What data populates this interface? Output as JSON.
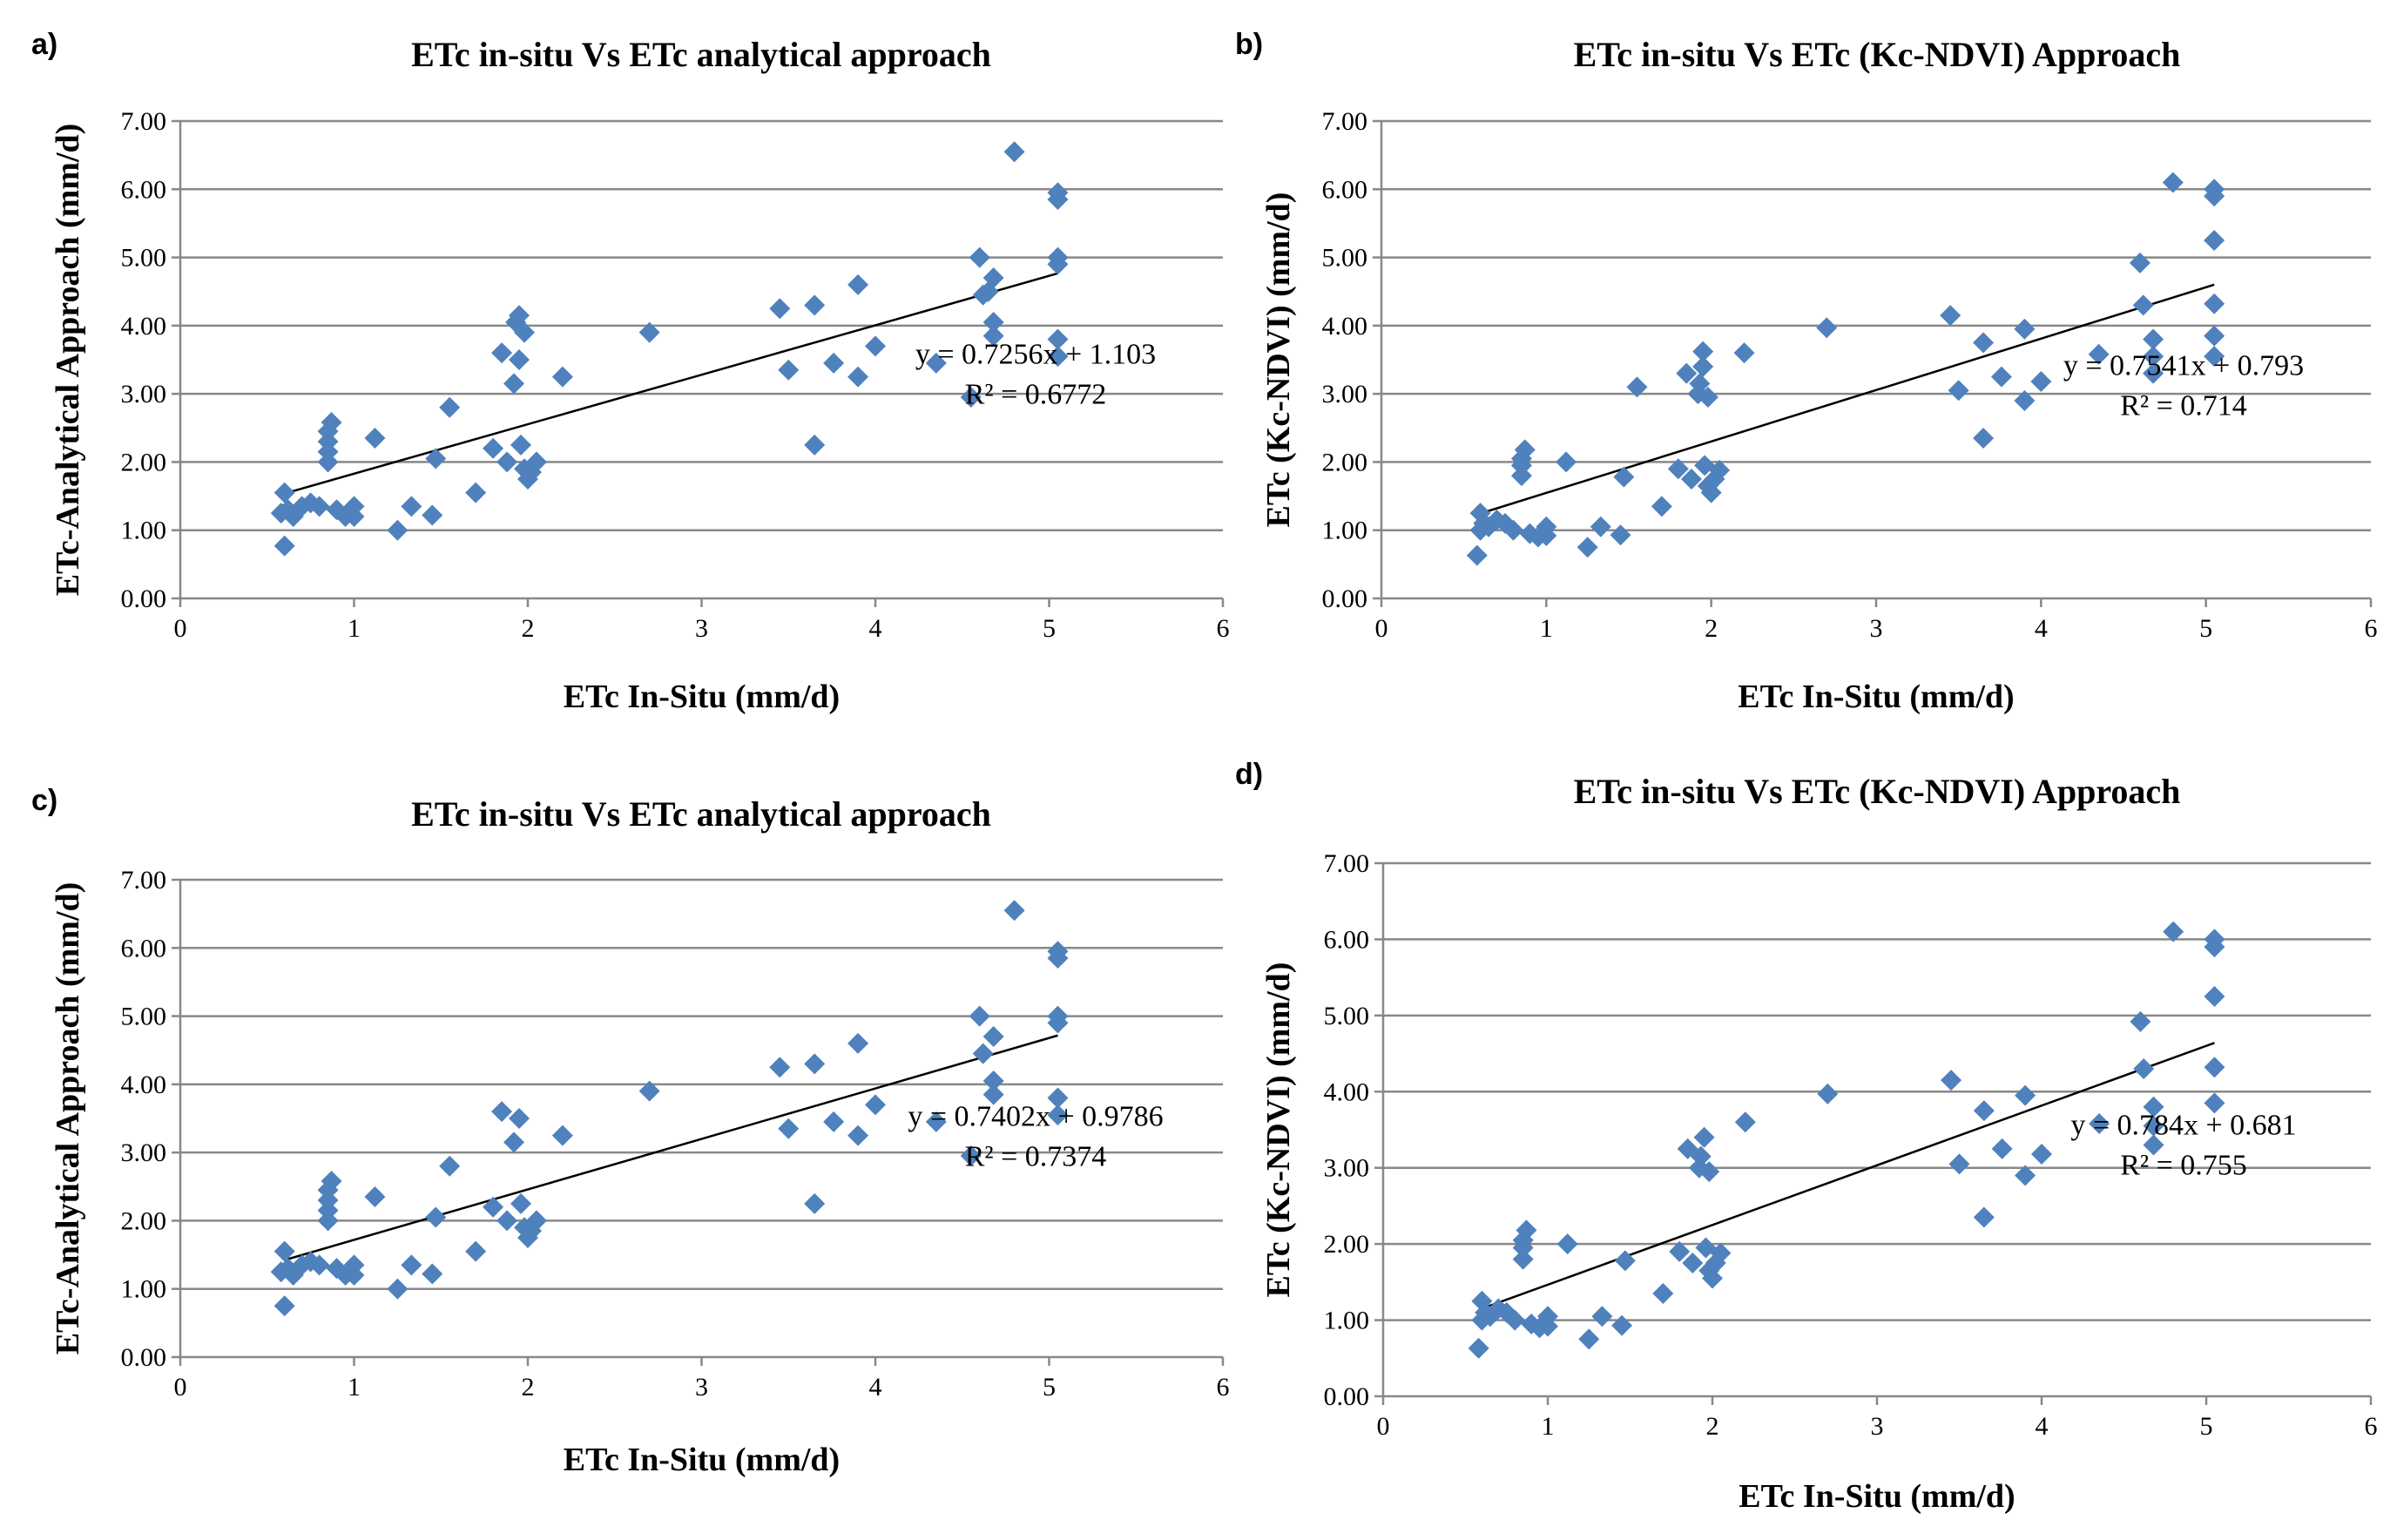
{
  "colors": {
    "marker": "#4F81BD",
    "trendline": "#000000",
    "gridline": "#888888"
  },
  "chart_data": [
    {
      "type": "scatter",
      "panel_label": "a)",
      "title": "ETc in-situ Vs ETc analytical approach",
      "xlabel": "ETc In-Situ (mm/d)",
      "ylabel": "ETc-Analytical Approach (mm/d)",
      "xlim": [
        0,
        6
      ],
      "ylim": [
        0,
        7
      ],
      "xticks": [
        0,
        1,
        2,
        3,
        4,
        5,
        6
      ],
      "xtick_labels": [
        "0",
        "1",
        "2",
        "3",
        "4",
        "5",
        "6"
      ],
      "yticks": [
        0,
        1,
        2,
        3,
        4,
        5,
        6,
        7
      ],
      "ytick_labels": [
        "0.00",
        "1.00",
        "2.00",
        "3.00",
        "4.00",
        "5.00",
        "6.00",
        "7.00"
      ],
      "grid": true,
      "trendline": {
        "slope": 0.7256,
        "intercept": 1.103,
        "x_range": [
          0.6,
          5.05
        ]
      },
      "equation": "y = 0.7256x + 1.103",
      "r_squared": "R² = 0.6772",
      "points": [
        [
          0.58,
          1.25
        ],
        [
          0.6,
          1.55
        ],
        [
          0.6,
          0.77
        ],
        [
          0.62,
          1.3
        ],
        [
          0.65,
          1.2
        ],
        [
          0.7,
          1.35
        ],
        [
          0.75,
          1.4
        ],
        [
          0.8,
          1.35
        ],
        [
          0.85,
          2.0
        ],
        [
          0.85,
          2.15
        ],
        [
          0.85,
          2.3
        ],
        [
          0.85,
          2.45
        ],
        [
          0.87,
          2.58
        ],
        [
          0.9,
          1.3
        ],
        [
          0.95,
          1.2
        ],
        [
          1.0,
          1.35
        ],
        [
          1.0,
          1.2
        ],
        [
          1.12,
          2.35
        ],
        [
          1.25,
          1.0
        ],
        [
          1.33,
          1.35
        ],
        [
          1.45,
          1.22
        ],
        [
          1.47,
          2.05
        ],
        [
          1.55,
          2.8
        ],
        [
          1.7,
          1.55
        ],
        [
          1.8,
          2.2
        ],
        [
          1.85,
          3.6
        ],
        [
          1.88,
          2.0
        ],
        [
          1.92,
          3.15
        ],
        [
          1.93,
          4.05
        ],
        [
          1.95,
          4.15
        ],
        [
          1.95,
          3.5
        ],
        [
          1.96,
          2.25
        ],
        [
          1.98,
          3.9
        ],
        [
          1.98,
          1.9
        ],
        [
          2.0,
          1.75
        ],
        [
          2.02,
          1.85
        ],
        [
          2.05,
          2.0
        ],
        [
          2.2,
          3.25
        ],
        [
          2.7,
          3.9
        ],
        [
          3.45,
          4.25
        ],
        [
          3.5,
          3.35
        ],
        [
          3.65,
          4.3
        ],
        [
          3.65,
          2.25
        ],
        [
          3.76,
          3.45
        ],
        [
          3.9,
          4.6
        ],
        [
          3.9,
          3.25
        ],
        [
          4.0,
          3.7
        ],
        [
          4.35,
          3.45
        ],
        [
          4.55,
          2.95
        ],
        [
          4.6,
          5.0
        ],
        [
          4.62,
          4.45
        ],
        [
          4.65,
          4.5
        ],
        [
          4.68,
          4.7
        ],
        [
          4.68,
          4.05
        ],
        [
          4.68,
          3.85
        ],
        [
          4.8,
          6.55
        ],
        [
          5.05,
          5.95
        ],
        [
          5.05,
          5.85
        ],
        [
          5.05,
          5.0
        ],
        [
          5.05,
          4.9
        ],
        [
          5.05,
          3.8
        ],
        [
          5.05,
          3.55
        ]
      ]
    },
    {
      "type": "scatter",
      "panel_label": "b)",
      "title": "ETc in-situ Vs ETc (Kc-NDVI) Approach",
      "xlabel": "ETc In-Situ (mm/d)",
      "ylabel": "ETc  (Kc-NDVI) (mm/d)",
      "xlim": [
        0,
        6
      ],
      "ylim": [
        0,
        7
      ],
      "xticks": [
        0,
        1,
        2,
        3,
        4,
        5,
        6
      ],
      "xtick_labels": [
        "0",
        "1",
        "2",
        "3",
        "4",
        "5",
        "6"
      ],
      "yticks": [
        0,
        1,
        2,
        3,
        4,
        5,
        6,
        7
      ],
      "ytick_labels": [
        "0.00",
        "1.00",
        "2.00",
        "3.00",
        "4.00",
        "5.00",
        "6.00",
        "7.00"
      ],
      "grid": true,
      "trendline": {
        "slope": 0.7541,
        "intercept": 0.793,
        "x_range": [
          0.6,
          5.05
        ]
      },
      "equation": "y = 0.7541x + 0.793",
      "r_squared": "R² = 0.714",
      "points": [
        [
          0.58,
          0.63
        ],
        [
          0.6,
          1.0
        ],
        [
          0.6,
          1.25
        ],
        [
          0.62,
          1.1
        ],
        [
          0.65,
          1.05
        ],
        [
          0.7,
          1.15
        ],
        [
          0.75,
          1.1
        ],
        [
          0.8,
          1.0
        ],
        [
          0.85,
          1.8
        ],
        [
          0.85,
          1.95
        ],
        [
          0.85,
          2.05
        ],
        [
          0.87,
          2.18
        ],
        [
          0.9,
          0.95
        ],
        [
          0.95,
          0.9
        ],
        [
          1.0,
          1.05
        ],
        [
          1.0,
          0.92
        ],
        [
          1.12,
          2.0
        ],
        [
          1.25,
          0.75
        ],
        [
          1.33,
          1.05
        ],
        [
          1.45,
          0.93
        ],
        [
          1.47,
          1.78
        ],
        [
          1.55,
          3.1
        ],
        [
          1.7,
          1.35
        ],
        [
          1.8,
          1.9
        ],
        [
          1.85,
          3.3
        ],
        [
          1.88,
          1.75
        ],
        [
          1.92,
          3.0
        ],
        [
          1.93,
          3.15
        ],
        [
          1.95,
          3.62
        ],
        [
          1.95,
          3.4
        ],
        [
          1.96,
          1.95
        ],
        [
          1.98,
          2.95
        ],
        [
          1.98,
          1.65
        ],
        [
          2.0,
          1.55
        ],
        [
          2.02,
          1.75
        ],
        [
          2.05,
          1.88
        ],
        [
          2.2,
          3.6
        ],
        [
          2.7,
          3.97
        ],
        [
          3.45,
          4.15
        ],
        [
          3.5,
          3.05
        ],
        [
          3.65,
          3.75
        ],
        [
          3.65,
          2.35
        ],
        [
          3.76,
          3.25
        ],
        [
          3.9,
          3.95
        ],
        [
          3.9,
          2.9
        ],
        [
          4.0,
          3.18
        ],
        [
          4.35,
          3.58
        ],
        [
          4.6,
          4.92
        ],
        [
          4.62,
          4.3
        ],
        [
          4.68,
          3.8
        ],
        [
          4.68,
          3.55
        ],
        [
          4.68,
          3.3
        ],
        [
          4.8,
          6.1
        ],
        [
          5.05,
          6.0
        ],
        [
          5.05,
          5.9
        ],
        [
          5.05,
          5.25
        ],
        [
          5.05,
          4.32
        ],
        [
          5.05,
          3.85
        ],
        [
          5.05,
          3.55
        ]
      ]
    },
    {
      "type": "scatter",
      "panel_label": "c)",
      "title": "ETc in-situ Vs ETc analytical approach",
      "xlabel": "ETc In-Situ (mm/d)",
      "ylabel": "ETc-Analytical Approach (mm/d)",
      "xlim": [
        0,
        6
      ],
      "ylim": [
        0,
        7
      ],
      "xticks": [
        0,
        1,
        2,
        3,
        4,
        5,
        6
      ],
      "xtick_labels": [
        "0",
        "1",
        "2",
        "3",
        "4",
        "5",
        "6"
      ],
      "yticks": [
        0,
        1,
        2,
        3,
        4,
        5,
        6,
        7
      ],
      "ytick_labels": [
        "0.00",
        "1.00",
        "2.00",
        "3.00",
        "4.00",
        "5.00",
        "6.00",
        "7.00"
      ],
      "grid": true,
      "trendline": {
        "slope": 0.7402,
        "intercept": 0.9786,
        "x_range": [
          0.6,
          5.05
        ]
      },
      "equation": "y = 0.7402x + 0.9786",
      "r_squared": "R² = 0.7374",
      "points": [
        [
          0.58,
          1.25
        ],
        [
          0.6,
          1.55
        ],
        [
          0.6,
          0.75
        ],
        [
          0.62,
          1.3
        ],
        [
          0.65,
          1.2
        ],
        [
          0.7,
          1.35
        ],
        [
          0.75,
          1.4
        ],
        [
          0.8,
          1.35
        ],
        [
          0.85,
          2.0
        ],
        [
          0.85,
          2.15
        ],
        [
          0.85,
          2.3
        ],
        [
          0.85,
          2.45
        ],
        [
          0.87,
          2.58
        ],
        [
          0.9,
          1.3
        ],
        [
          0.95,
          1.2
        ],
        [
          1.0,
          1.35
        ],
        [
          1.0,
          1.2
        ],
        [
          1.12,
          2.35
        ],
        [
          1.25,
          1.0
        ],
        [
          1.33,
          1.35
        ],
        [
          1.45,
          1.22
        ],
        [
          1.47,
          2.05
        ],
        [
          1.55,
          2.8
        ],
        [
          1.7,
          1.55
        ],
        [
          1.8,
          2.2
        ],
        [
          1.85,
          3.6
        ],
        [
          1.88,
          2.0
        ],
        [
          1.92,
          3.15
        ],
        [
          1.95,
          3.5
        ],
        [
          1.96,
          2.25
        ],
        [
          1.98,
          1.9
        ],
        [
          2.0,
          1.75
        ],
        [
          2.02,
          1.85
        ],
        [
          2.05,
          2.0
        ],
        [
          2.2,
          3.25
        ],
        [
          2.7,
          3.9
        ],
        [
          3.45,
          4.25
        ],
        [
          3.5,
          3.35
        ],
        [
          3.65,
          4.3
        ],
        [
          3.65,
          2.25
        ],
        [
          3.76,
          3.45
        ],
        [
          3.9,
          4.6
        ],
        [
          3.9,
          3.25
        ],
        [
          4.0,
          3.7
        ],
        [
          4.35,
          3.45
        ],
        [
          4.55,
          2.95
        ],
        [
          4.6,
          5.0
        ],
        [
          4.62,
          4.45
        ],
        [
          4.68,
          4.7
        ],
        [
          4.68,
          4.05
        ],
        [
          4.68,
          3.85
        ],
        [
          4.8,
          6.55
        ],
        [
          5.05,
          5.95
        ],
        [
          5.05,
          5.85
        ],
        [
          5.05,
          5.0
        ],
        [
          5.05,
          4.9
        ],
        [
          5.05,
          3.8
        ],
        [
          5.05,
          3.55
        ]
      ]
    },
    {
      "type": "scatter",
      "panel_label": "d)",
      "title": "ETc in-situ Vs ETc (Kc-NDVI) Approach",
      "xlabel": "ETc In-Situ (mm/d)",
      "ylabel": "ETc  (Kc-NDVI) (mm/d)",
      "xlim": [
        0,
        6
      ],
      "ylim": [
        0,
        7
      ],
      "xticks": [
        0,
        1,
        2,
        3,
        4,
        5,
        6
      ],
      "xtick_labels": [
        "0",
        "1",
        "2",
        "3",
        "4",
        "5",
        "6"
      ],
      "yticks": [
        0,
        1,
        2,
        3,
        4,
        5,
        6,
        7
      ],
      "ytick_labels": [
        "0.00",
        "1.00",
        "2.00",
        "3.00",
        "4.00",
        "5.00",
        "6.00",
        "7.00"
      ],
      "grid": true,
      "trendline": {
        "slope": 0.784,
        "intercept": 0.681,
        "x_range": [
          0.6,
          5.05
        ]
      },
      "equation": "y = 0.784x + 0.681",
      "r_squared": "R² = 0.755",
      "points": [
        [
          0.58,
          0.63
        ],
        [
          0.6,
          1.0
        ],
        [
          0.6,
          1.25
        ],
        [
          0.62,
          1.1
        ],
        [
          0.65,
          1.05
        ],
        [
          0.7,
          1.15
        ],
        [
          0.75,
          1.1
        ],
        [
          0.8,
          1.0
        ],
        [
          0.85,
          1.8
        ],
        [
          0.85,
          1.95
        ],
        [
          0.85,
          2.05
        ],
        [
          0.87,
          2.18
        ],
        [
          0.9,
          0.95
        ],
        [
          0.95,
          0.9
        ],
        [
          1.0,
          1.05
        ],
        [
          1.0,
          0.92
        ],
        [
          1.12,
          2.0
        ],
        [
          1.25,
          0.75
        ],
        [
          1.33,
          1.05
        ],
        [
          1.45,
          0.93
        ],
        [
          1.47,
          1.78
        ],
        [
          1.7,
          1.35
        ],
        [
          1.8,
          1.9
        ],
        [
          1.85,
          3.25
        ],
        [
          1.88,
          1.75
        ],
        [
          1.92,
          3.0
        ],
        [
          1.93,
          3.15
        ],
        [
          1.95,
          3.4
        ],
        [
          1.96,
          1.95
        ],
        [
          1.98,
          2.95
        ],
        [
          1.98,
          1.65
        ],
        [
          2.0,
          1.55
        ],
        [
          2.02,
          1.75
        ],
        [
          2.05,
          1.88
        ],
        [
          2.2,
          3.6
        ],
        [
          2.7,
          3.97
        ],
        [
          3.45,
          4.15
        ],
        [
          3.5,
          3.05
        ],
        [
          3.65,
          3.75
        ],
        [
          3.65,
          2.35
        ],
        [
          3.76,
          3.25
        ],
        [
          3.9,
          3.95
        ],
        [
          3.9,
          2.9
        ],
        [
          4.0,
          3.18
        ],
        [
          4.35,
          3.58
        ],
        [
          4.6,
          4.92
        ],
        [
          4.62,
          4.3
        ],
        [
          4.68,
          3.8
        ],
        [
          4.68,
          3.55
        ],
        [
          4.68,
          3.3
        ],
        [
          4.8,
          6.1
        ],
        [
          5.05,
          6.0
        ],
        [
          5.05,
          5.9
        ],
        [
          5.05,
          5.25
        ],
        [
          5.05,
          4.32
        ],
        [
          5.05,
          3.85
        ]
      ]
    }
  ]
}
